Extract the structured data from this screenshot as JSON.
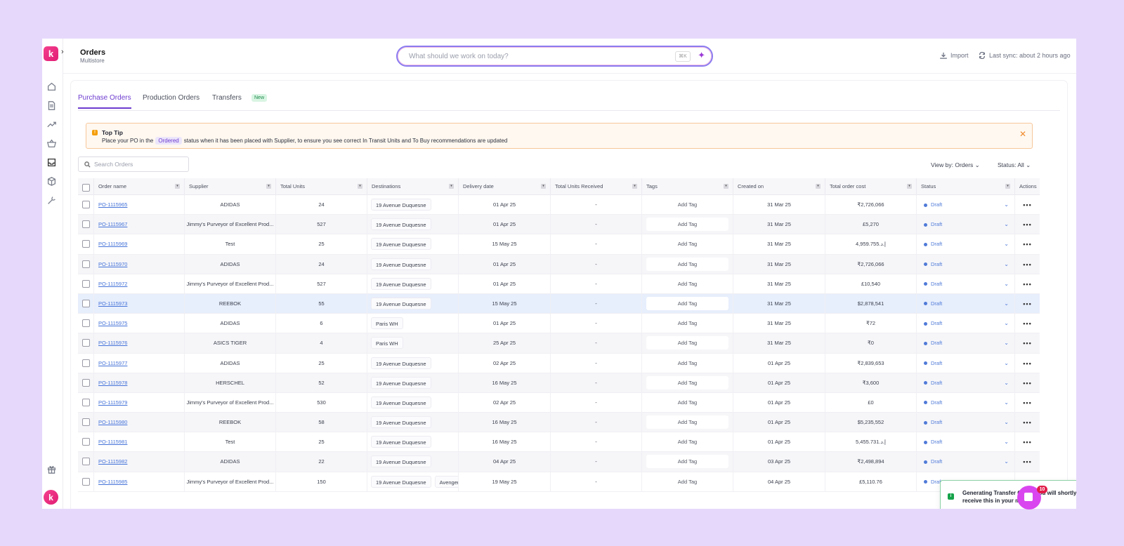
{
  "header": {
    "title": "Orders",
    "subtitle": "Multistore",
    "command_placeholder": "What should we work on today?",
    "shortcut": "⌘K",
    "import_label": "Import",
    "sync_label": "Last sync: about 2 hours ago"
  },
  "sidebar": {
    "logo": "k",
    "avatar": "k",
    "items": [
      "home-icon",
      "document-icon",
      "trend-icon",
      "basket-icon",
      "inbox-icon",
      "box-icon",
      "wrench-icon",
      "gift-icon"
    ]
  },
  "tabs": [
    {
      "label": "Purchase Orders",
      "active": true
    },
    {
      "label": "Production Orders",
      "active": false
    },
    {
      "label": "Transfers",
      "active": false
    }
  ],
  "tabs_badge": "New",
  "tip": {
    "title": "Top Tip",
    "text_before": "Place your PO in the",
    "chip": "Ordered",
    "text_after": "status when it has been placed with Supplier, to ensure you see correct In Transit Units and To Buy recommendations are updated"
  },
  "search": {
    "placeholder": "Search Orders",
    "value": ""
  },
  "filters": {
    "view_by": "View by: Orders ⌄",
    "status": "Status: All ⌄"
  },
  "table": {
    "headers": [
      "Order name",
      "Supplier",
      "Total Units",
      "Destinations",
      "Delivery date",
      "Total Units Received",
      "Tags",
      "Created on",
      "Total order cost",
      "Status",
      "Actions"
    ],
    "tag_label": "Add Tag",
    "rows": [
      {
        "name": "PO-1115965",
        "supplier": "ADIDAS",
        "units": "24",
        "dest": [
          "19 Avenue Duquesne"
        ],
        "delivery": "01 Apr 25",
        "received": "-",
        "created": "31 Mar 25",
        "cost": "₹2,726,066",
        "status": "Draft"
      },
      {
        "name": "PO-1115967",
        "supplier": "Jimmy's Purveyor of Excellent Prod...",
        "units": "527",
        "dest": [
          "19 Avenue Duquesne"
        ],
        "delivery": "01 Apr 25",
        "received": "-",
        "created": "31 Mar 25",
        "cost": "£5,270",
        "status": "Draft"
      },
      {
        "name": "PO-1115969",
        "supplier": "Test",
        "units": "25",
        "dest": [
          "19 Avenue Duquesne"
        ],
        "delivery": "15 May 25",
        "received": "-",
        "created": "31 Mar 25",
        "cost": "4,959.755.إ.د",
        "status": "Draft"
      },
      {
        "name": "PO-1115970",
        "supplier": "ADIDAS",
        "units": "24",
        "dest": [
          "19 Avenue Duquesne"
        ],
        "delivery": "01 Apr 25",
        "received": "-",
        "created": "31 Mar 25",
        "cost": "₹2,726,066",
        "status": "Draft"
      },
      {
        "name": "PO-1115972",
        "supplier": "Jimmy's Purveyor of Excellent Prod...",
        "units": "527",
        "dest": [
          "19 Avenue Duquesne"
        ],
        "delivery": "01 Apr 25",
        "received": "-",
        "created": "31 Mar 25",
        "cost": "£10,540",
        "status": "Draft"
      },
      {
        "name": "PO-1115973",
        "supplier": "REEBOK",
        "units": "55",
        "dest": [
          "19 Avenue Duquesne"
        ],
        "delivery": "15 May 25",
        "received": "-",
        "created": "31 Mar 25",
        "cost": "$2,878,541",
        "status": "Draft"
      },
      {
        "name": "PO-1115975",
        "supplier": "ADIDAS",
        "units": "6",
        "dest": [
          "Paris WH"
        ],
        "delivery": "01 Apr 25",
        "received": "-",
        "created": "31 Mar 25",
        "cost": "₹72",
        "status": "Draft"
      },
      {
        "name": "PO-1115976",
        "supplier": "ASICS TIGER",
        "units": "4",
        "dest": [
          "Paris WH"
        ],
        "delivery": "25 Apr 25",
        "received": "-",
        "created": "31 Mar 25",
        "cost": "₹0",
        "status": "Draft"
      },
      {
        "name": "PO-1115977",
        "supplier": "ADIDAS",
        "units": "25",
        "dest": [
          "19 Avenue Duquesne"
        ],
        "delivery": "02 Apr 25",
        "received": "-",
        "created": "01 Apr 25",
        "cost": "₹2,839,653",
        "status": "Draft"
      },
      {
        "name": "PO-1115978",
        "supplier": "HERSCHEL",
        "units": "52",
        "dest": [
          "19 Avenue Duquesne"
        ],
        "delivery": "16 May 25",
        "received": "-",
        "created": "01 Apr 25",
        "cost": "₹3,600",
        "status": "Draft"
      },
      {
        "name": "PO-1115979",
        "supplier": "Jimmy's Purveyor of Excellent Prod...",
        "units": "530",
        "dest": [
          "19 Avenue Duquesne"
        ],
        "delivery": "02 Apr 25",
        "received": "-",
        "created": "01 Apr 25",
        "cost": "£0",
        "status": "Draft"
      },
      {
        "name": "PO-1115980",
        "supplier": "REEBOK",
        "units": "58",
        "dest": [
          "19 Avenue Duquesne"
        ],
        "delivery": "16 May 25",
        "received": "-",
        "created": "01 Apr 25",
        "cost": "$5,235,552",
        "status": "Draft"
      },
      {
        "name": "PO-1115981",
        "supplier": "Test",
        "units": "25",
        "dest": [
          "19 Avenue Duquesne"
        ],
        "delivery": "16 May 25",
        "received": "-",
        "created": "01 Apr 25",
        "cost": "5,455.731.إ.د",
        "status": "Draft"
      },
      {
        "name": "PO-1115982",
        "supplier": "ADIDAS",
        "units": "22",
        "dest": [
          "19 Avenue Duquesne"
        ],
        "delivery": "04 Apr 25",
        "received": "-",
        "created": "03 Apr 25",
        "cost": "₹2,498,894",
        "status": "Draft"
      },
      {
        "name": "PO-1115985",
        "supplier": "Jimmy's Purveyor of Excellent Prod...",
        "units": "150",
        "dest": [
          "19 Avenue Duquesne",
          "Avenger..."
        ],
        "delivery": "19 May 25",
        "received": "-",
        "created": "04 Apr 25",
        "cost": "£5,110.76",
        "status": "Draft"
      }
    ]
  },
  "toast": {
    "message": "Generating Transfer Order. You will shortly receive this in your mailbox."
  },
  "chat": {
    "badge": "10"
  },
  "colors": {
    "accent": "#6d3ccf",
    "link": "#4573d8",
    "status": "#4f7ad8",
    "tip_border": "#f7c79a",
    "selected_row": "#e7eefc",
    "background": "#e6d8fb"
  }
}
